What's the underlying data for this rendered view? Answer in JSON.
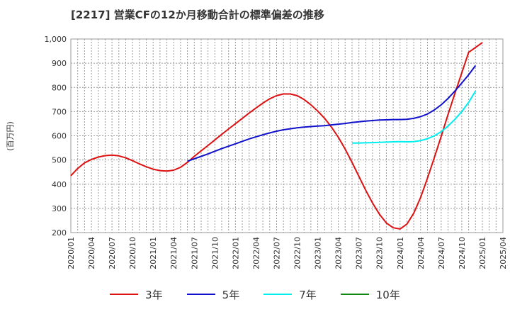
{
  "title": "[2217]  営業CFの12か月移動合計の標準偏差の推移",
  "chart_data": {
    "type": "line",
    "ylabel": "(百万円)",
    "ylim": [
      200,
      1000
    ],
    "yticks": [
      200,
      300,
      400,
      500,
      600,
      700,
      800,
      900,
      1000
    ],
    "ytick_labels": [
      "200",
      "300",
      "400",
      "500",
      "600",
      "700",
      "800",
      "900",
      "1,000"
    ],
    "xlim": [
      "2020-01",
      "2025-04"
    ],
    "xticks": [
      "2020/01",
      "2020/04",
      "2020/07",
      "2020/10",
      "2021/01",
      "2021/04",
      "2021/07",
      "2021/10",
      "2022/01",
      "2022/04",
      "2022/07",
      "2022/10",
      "2023/01",
      "2023/04",
      "2023/07",
      "2023/10",
      "2024/01",
      "2024/04",
      "2024/07",
      "2024/10",
      "2025/01",
      "2025/04"
    ],
    "grid": true,
    "legend_position": "bottom",
    "series": [
      {
        "name": "3年",
        "color": "#dd1111",
        "points": [
          [
            "2020-01",
            435
          ],
          [
            "2020-02",
            465
          ],
          [
            "2020-03",
            488
          ],
          [
            "2020-04",
            502
          ],
          [
            "2020-05",
            512
          ],
          [
            "2020-06",
            518
          ],
          [
            "2020-07",
            520
          ],
          [
            "2020-08",
            517
          ],
          [
            "2020-09",
            509
          ],
          [
            "2020-10",
            497
          ],
          [
            "2020-11",
            484
          ],
          [
            "2020-12",
            472
          ],
          [
            "2021-01",
            462
          ],
          [
            "2021-02",
            456
          ],
          [
            "2021-03",
            454
          ],
          [
            "2021-04",
            458
          ],
          [
            "2021-05",
            470
          ],
          [
            "2021-06",
            490
          ],
          [
            "2021-07",
            515
          ],
          [
            "2021-08",
            538
          ],
          [
            "2021-09",
            560
          ],
          [
            "2021-10",
            583
          ],
          [
            "2021-11",
            606
          ],
          [
            "2021-12",
            628
          ],
          [
            "2022-01",
            650
          ],
          [
            "2022-02",
            672
          ],
          [
            "2022-03",
            694
          ],
          [
            "2022-04",
            715
          ],
          [
            "2022-05",
            735
          ],
          [
            "2022-06",
            753
          ],
          [
            "2022-07",
            766
          ],
          [
            "2022-08",
            773
          ],
          [
            "2022-09",
            773
          ],
          [
            "2022-10",
            766
          ],
          [
            "2022-11",
            750
          ],
          [
            "2022-12",
            728
          ],
          [
            "2023-01",
            702
          ],
          [
            "2023-02",
            672
          ],
          [
            "2023-03",
            636
          ],
          [
            "2023-04",
            594
          ],
          [
            "2023-05",
            545
          ],
          [
            "2023-06",
            490
          ],
          [
            "2023-07",
            432
          ],
          [
            "2023-08",
            375
          ],
          [
            "2023-09",
            322
          ],
          [
            "2023-10",
            276
          ],
          [
            "2023-11",
            240
          ],
          [
            "2023-12",
            220
          ],
          [
            "2024-01",
            215
          ],
          [
            "2024-02",
            235
          ],
          [
            "2024-03",
            280
          ],
          [
            "2024-04",
            345
          ],
          [
            "2024-05",
            425
          ],
          [
            "2024-06",
            510
          ],
          [
            "2024-07",
            598
          ],
          [
            "2024-08",
            688
          ],
          [
            "2024-09",
            775
          ],
          [
            "2024-10",
            860
          ],
          [
            "2024-11",
            945
          ],
          [
            "2025-01",
            985
          ]
        ]
      },
      {
        "name": "5年",
        "color": "#1111cc",
        "points": [
          [
            "2021-06",
            495
          ],
          [
            "2021-07",
            505
          ],
          [
            "2021-08",
            515
          ],
          [
            "2021-09",
            525
          ],
          [
            "2021-10",
            536
          ],
          [
            "2021-11",
            547
          ],
          [
            "2021-12",
            557
          ],
          [
            "2022-01",
            567
          ],
          [
            "2022-02",
            577
          ],
          [
            "2022-03",
            587
          ],
          [
            "2022-04",
            596
          ],
          [
            "2022-05",
            604
          ],
          [
            "2022-06",
            612
          ],
          [
            "2022-07",
            619
          ],
          [
            "2022-08",
            625
          ],
          [
            "2022-09",
            629
          ],
          [
            "2022-10",
            633
          ],
          [
            "2022-11",
            636
          ],
          [
            "2022-12",
            638
          ],
          [
            "2023-01",
            640
          ],
          [
            "2023-02",
            642
          ],
          [
            "2023-03",
            645
          ],
          [
            "2023-04",
            648
          ],
          [
            "2023-05",
            651
          ],
          [
            "2023-06",
            655
          ],
          [
            "2023-07",
            658
          ],
          [
            "2023-08",
            661
          ],
          [
            "2023-09",
            663
          ],
          [
            "2023-10",
            665
          ],
          [
            "2023-11",
            666
          ],
          [
            "2023-12",
            667
          ],
          [
            "2024-01",
            667
          ],
          [
            "2024-02",
            668
          ],
          [
            "2024-03",
            672
          ],
          [
            "2024-04",
            679
          ],
          [
            "2024-05",
            690
          ],
          [
            "2024-06",
            707
          ],
          [
            "2024-07",
            728
          ],
          [
            "2024-08",
            754
          ],
          [
            "2024-09",
            785
          ],
          [
            "2024-10",
            818
          ],
          [
            "2024-11",
            852
          ],
          [
            "2024-12",
            890
          ]
        ]
      },
      {
        "name": "7年",
        "color": "#00eeee",
        "points": [
          [
            "2023-06",
            570
          ],
          [
            "2023-07",
            570
          ],
          [
            "2023-08",
            571
          ],
          [
            "2023-09",
            572
          ],
          [
            "2023-10",
            573
          ],
          [
            "2023-11",
            574
          ],
          [
            "2023-12",
            575
          ],
          [
            "2024-01",
            576
          ],
          [
            "2024-02",
            575
          ],
          [
            "2024-03",
            576
          ],
          [
            "2024-04",
            580
          ],
          [
            "2024-05",
            588
          ],
          [
            "2024-06",
            600
          ],
          [
            "2024-07",
            617
          ],
          [
            "2024-08",
            640
          ],
          [
            "2024-09",
            668
          ],
          [
            "2024-10",
            700
          ],
          [
            "2024-11",
            738
          ],
          [
            "2024-12",
            785
          ]
        ]
      },
      {
        "name": "10年",
        "color": "#118811",
        "points": []
      }
    ]
  }
}
